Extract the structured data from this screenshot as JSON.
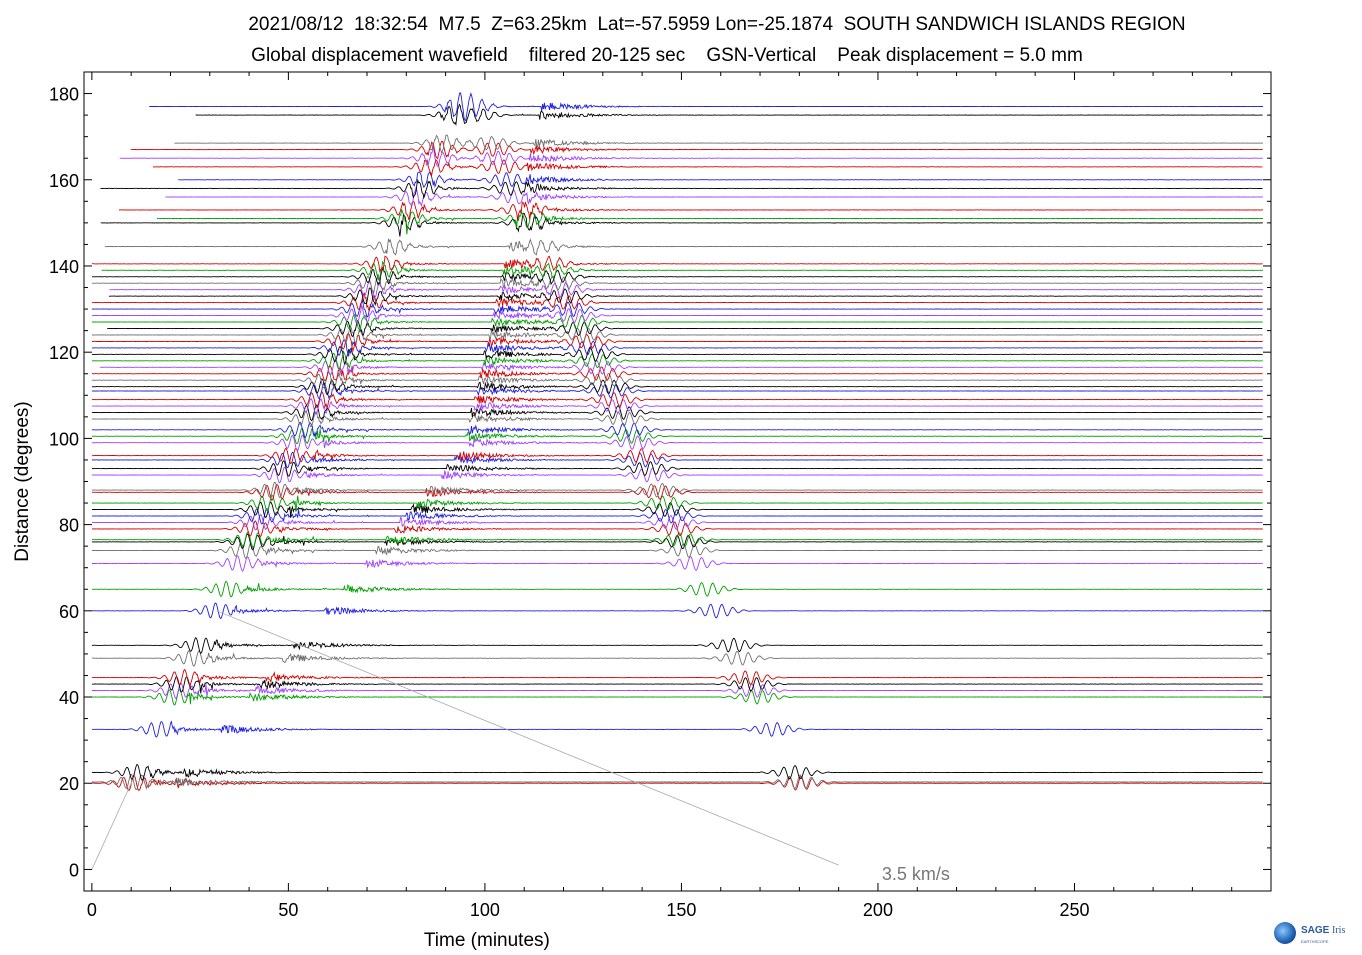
{
  "header": {
    "line1": "2021/08/12  18:32:54  M7.5  Z=63.25km  Lat=-57.5959 Lon=-25.1874  SOUTH SANDWICH ISLANDS REGION",
    "line2": "Global displacement wavefield    filtered 20-125 sec    GSN-Vertical    Peak displacement = 5.0 mm"
  },
  "chart_data": {
    "type": "line",
    "xlabel": "Time (minutes)",
    "ylabel": "Distance (degrees)",
    "xlim": [
      -2,
      300
    ],
    "ylim": [
      -5,
      185
    ],
    "x_ticks": [
      "0",
      "50",
      "100",
      "150",
      "200",
      "250"
    ],
    "y_ticks": [
      "0",
      "20",
      "40",
      "60",
      "80",
      "100",
      "120",
      "140",
      "160",
      "180"
    ],
    "velocity_line": {
      "label": "3.5 km/s",
      "velocity_km_s": 3.5
    },
    "series_colors": [
      "#000000",
      "#d40000",
      "#1f1fe0",
      "#00a000",
      "#a040ff",
      "#707070"
    ],
    "traces": [
      {
        "distance": 20,
        "color": "#d40000"
      },
      {
        "distance": 20.3,
        "color": "#707070"
      },
      {
        "distance": 22.5,
        "color": "#000000"
      },
      {
        "distance": 32.5,
        "color": "#1f1fe0"
      },
      {
        "distance": 40,
        "color": "#00a000"
      },
      {
        "distance": 41.5,
        "color": "#a040ff"
      },
      {
        "distance": 43,
        "color": "#000000"
      },
      {
        "distance": 44.5,
        "color": "#d40000"
      },
      {
        "distance": 49,
        "color": "#707070"
      },
      {
        "distance": 52,
        "color": "#000000"
      },
      {
        "distance": 60,
        "color": "#1f1fe0"
      },
      {
        "distance": 65,
        "color": "#00a000"
      },
      {
        "distance": 71,
        "color": "#a040ff"
      },
      {
        "distance": 74,
        "color": "#707070"
      },
      {
        "distance": 76,
        "color": "#000000"
      },
      {
        "distance": 76.5,
        "color": "#00a000"
      },
      {
        "distance": 79,
        "color": "#d40000"
      },
      {
        "distance": 80.5,
        "color": "#a040ff"
      },
      {
        "distance": 82,
        "color": "#1f1fe0"
      },
      {
        "distance": 83.5,
        "color": "#000000"
      },
      {
        "distance": 85,
        "color": "#00a000"
      },
      {
        "distance": 87.5,
        "color": "#d40000"
      },
      {
        "distance": 88,
        "color": "#707070"
      },
      {
        "distance": 91.5,
        "color": "#a040ff"
      },
      {
        "distance": 93,
        "color": "#000000"
      },
      {
        "distance": 95,
        "color": "#1f1fe0"
      },
      {
        "distance": 96,
        "color": "#d40000"
      },
      {
        "distance": 99,
        "color": "#a040ff"
      },
      {
        "distance": 100.5,
        "color": "#00a000"
      },
      {
        "distance": 102,
        "color": "#1f1fe0"
      },
      {
        "distance": 104.5,
        "color": "#707070"
      },
      {
        "distance": 106,
        "color": "#000000"
      },
      {
        "distance": 107.5,
        "color": "#a040ff"
      },
      {
        "distance": 109,
        "color": "#d40000"
      },
      {
        "distance": 111,
        "color": "#1f1fe0"
      },
      {
        "distance": 112,
        "color": "#000000"
      },
      {
        "distance": 113.5,
        "color": "#707070"
      },
      {
        "distance": 115,
        "color": "#d40000"
      },
      {
        "distance": 116.5,
        "color": "#a040ff"
      },
      {
        "distance": 118,
        "color": "#00a000"
      },
      {
        "distance": 119.5,
        "color": "#000000"
      },
      {
        "distance": 121,
        "color": "#1f1fe0"
      },
      {
        "distance": 122.5,
        "color": "#d40000"
      },
      {
        "distance": 124,
        "color": "#707070"
      },
      {
        "distance": 125.5,
        "color": "#000000"
      },
      {
        "distance": 127,
        "color": "#00a000"
      },
      {
        "distance": 128.5,
        "color": "#a040ff"
      },
      {
        "distance": 130,
        "color": "#1f1fe0"
      },
      {
        "distance": 131.5,
        "color": "#d40000"
      },
      {
        "distance": 133,
        "color": "#000000"
      },
      {
        "distance": 134.5,
        "color": "#a040ff"
      },
      {
        "distance": 136,
        "color": "#707070"
      },
      {
        "distance": 137.5,
        "color": "#000000"
      },
      {
        "distance": 139,
        "color": "#00a000"
      },
      {
        "distance": 140.5,
        "color": "#d40000"
      },
      {
        "distance": 144.5,
        "color": "#707070"
      },
      {
        "distance": 150,
        "color": "#000000"
      },
      {
        "distance": 151,
        "color": "#00a000"
      },
      {
        "distance": 153,
        "color": "#d40000"
      },
      {
        "distance": 156,
        "color": "#a040ff"
      },
      {
        "distance": 158,
        "color": "#000000"
      },
      {
        "distance": 160,
        "color": "#1f1fe0"
      },
      {
        "distance": 163,
        "color": "#d40000"
      },
      {
        "distance": 165,
        "color": "#a040ff"
      },
      {
        "distance": 167,
        "color": "#d40000"
      },
      {
        "distance": 168.5,
        "color": "#707070"
      },
      {
        "distance": 175,
        "color": "#000000"
      },
      {
        "distance": 177,
        "color": "#1f1fe0"
      }
    ]
  },
  "logo": {
    "sage": "SAGE",
    "iris": "Iris",
    "sub": "EARTHSCOPE"
  }
}
